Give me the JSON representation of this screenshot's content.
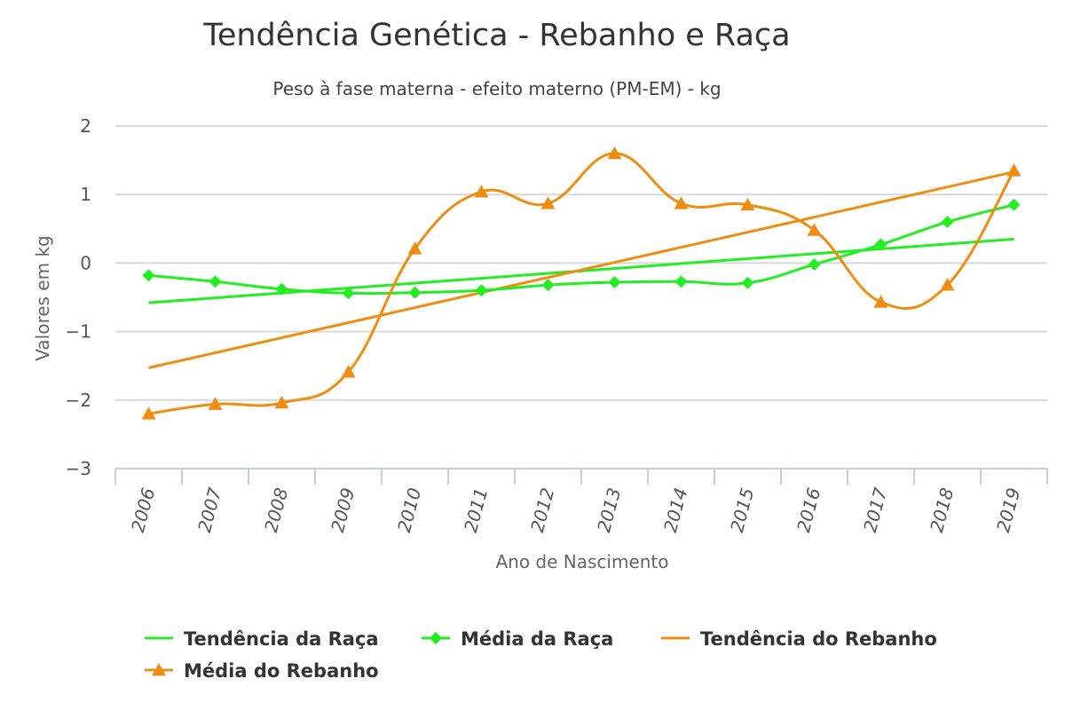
{
  "chart_data": {
    "type": "line",
    "title": "Tendência Genética - Rebanho e Raça",
    "subtitle": "Peso à fase materna - efeito materno (PM-EM) - kg",
    "xlabel": "Ano de Nascimento",
    "ylabel": "Valores em kg",
    "categories": [
      "2006",
      "2007",
      "2008",
      "2009",
      "2010",
      "2011",
      "2012",
      "2013",
      "2014",
      "2015",
      "2016",
      "2017",
      "2018",
      "2019"
    ],
    "ylim": [
      -3,
      2
    ],
    "yticks": [
      2,
      1,
      0,
      -1,
      -2,
      -3
    ],
    "ytick_labels": [
      "2",
      "1",
      "0",
      "−1",
      "−2",
      "−3"
    ],
    "grid": true,
    "legend_position": "bottom",
    "series": [
      {
        "name": "Tendência da Raça",
        "kind": "trend",
        "color": "#22ee22",
        "marker": "none",
        "values": [
          -0.58,
          -0.51,
          -0.44,
          -0.37,
          -0.3,
          -0.23,
          -0.16,
          -0.09,
          -0.02,
          0.05,
          0.12,
          0.21,
          0.28,
          0.35
        ]
      },
      {
        "name": "Média da Raça",
        "kind": "mean",
        "color": "#22ee22",
        "marker": "diamond",
        "values": [
          -0.18,
          -0.27,
          -0.38,
          -0.44,
          -0.43,
          -0.4,
          -0.32,
          -0.28,
          -0.27,
          -0.29,
          -0.02,
          0.27,
          0.6,
          0.85
        ]
      },
      {
        "name": "Tendência do Rebanho",
        "kind": "trend",
        "color": "#f08c10",
        "marker": "none",
        "values": [
          -1.53,
          -1.31,
          -1.09,
          -0.87,
          -0.65,
          -0.43,
          -0.21,
          0.01,
          0.23,
          0.45,
          0.67,
          0.89,
          1.11,
          1.33
        ]
      },
      {
        "name": "Média do Rebanho",
        "kind": "mean",
        "color": "#f08c10",
        "marker": "triangle",
        "values": [
          -2.2,
          -2.06,
          -2.04,
          -1.59,
          0.21,
          1.04,
          0.87,
          1.6,
          0.87,
          0.85,
          0.48,
          -0.57,
          -0.32,
          1.35
        ]
      }
    ]
  }
}
